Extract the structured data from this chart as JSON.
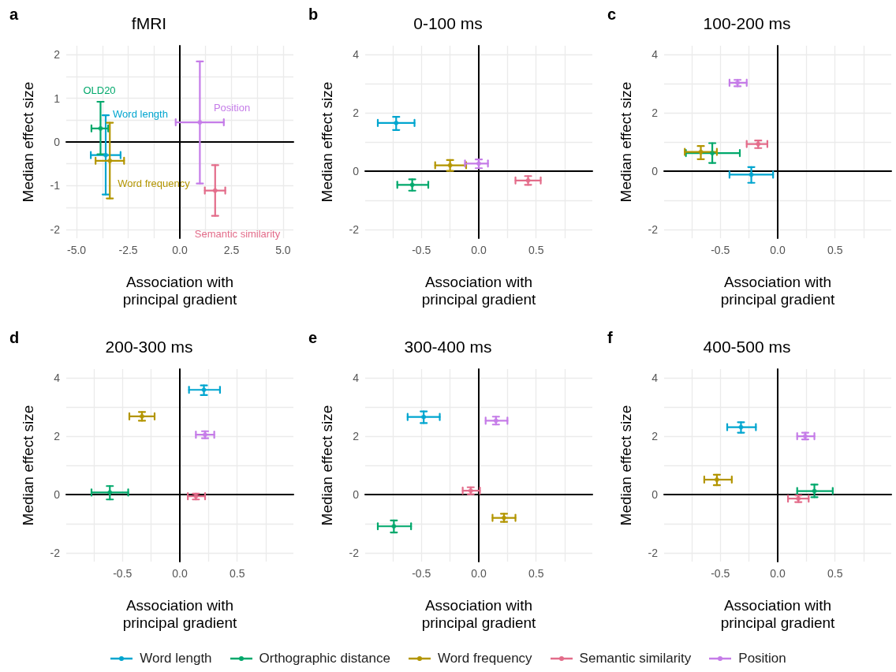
{
  "chart_data": [
    {
      "type": "scatter",
      "title": "fMRI",
      "xlabel": "Association with\nprincipal gradient",
      "ylabel": "Median effect size",
      "xlim": [
        -5.5,
        5.5
      ],
      "ylim": [
        -2.2,
        2.2
      ],
      "xticks": [
        {
          "value": -5,
          "label": "-5.0"
        },
        {
          "value": -3.75,
          "label": null
        },
        {
          "value": -2.5,
          "label": "-2.5"
        },
        {
          "value": -1.25,
          "label": null
        },
        {
          "value": 0,
          "label": "0.0"
        },
        {
          "value": 1.25,
          "label": null
        },
        {
          "value": 2.5,
          "label": "2.5"
        },
        {
          "value": 3.75,
          "label": null
        },
        {
          "value": 5,
          "label": "5.0"
        }
      ],
      "yticks": [
        -2,
        {
          "value": -1.5,
          "label": null
        },
        -1,
        {
          "value": -0.5,
          "label": null
        },
        0,
        {
          "value": 0.5,
          "label": null
        },
        1,
        {
          "value": 1.5,
          "label": null
        },
        2
      ],
      "grid": true,
      "marker": "circle",
      "annotations": [
        "a",
        "Word length",
        "OLD20",
        "Word frequency",
        "Semantic similarity",
        "Position"
      ],
      "legend": "bottom",
      "series": [
        {
          "name": "Word length",
          "color": "#00a5cf",
          "x": [
            -3.59
          ],
          "values": [
            -0.3
          ],
          "xerrors": [
            [
              -4.31,
              -2.87
            ]
          ],
          "errors": [
            [
              -1.2,
              0.61
            ]
          ]
        },
        {
          "name": "Orthographic distance",
          "color": "#00a86b",
          "x": [
            -3.84
          ],
          "values": [
            0.31
          ],
          "xerrors": [
            [
              -4.28,
              -3.47
            ]
          ],
          "errors": [
            [
              -0.28,
              0.92
            ]
          ]
        },
        {
          "name": "Word frequency",
          "color": "#b39500",
          "x": [
            -3.39
          ],
          "values": [
            -0.43
          ],
          "xerrors": [
            [
              -4.08,
              -2.7
            ]
          ],
          "errors": [
            [
              -1.29,
              0.44
            ]
          ]
        },
        {
          "name": "Semantic similarity",
          "color": "#e36c8a",
          "x": [
            1.71
          ],
          "values": [
            -1.11
          ],
          "xerrors": [
            [
              1.21,
              2.2
            ]
          ],
          "errors": [
            [
              -1.69,
              -0.53
            ]
          ]
        },
        {
          "name": "Position",
          "color": "#c57ce8",
          "x": [
            0.97
          ],
          "values": [
            0.45
          ],
          "xerrors": [
            [
              -0.2,
              2.13
            ]
          ],
          "errors": [
            [
              -0.95,
              1.84
            ]
          ]
        }
      ]
    },
    {
      "type": "scatter",
      "title": "0-100 ms",
      "xlabel": "Association with\nprincipal gradient",
      "ylabel": "Median effect size",
      "xlim": [
        -0.99,
        0.99
      ],
      "ylim": [
        -2.3,
        4.3
      ],
      "xticks": [
        {
          "value": -0.75,
          "label": null
        },
        {
          "value": -0.5,
          "label": "-0.5"
        },
        {
          "value": -0.25,
          "label": null
        },
        {
          "value": 0,
          "label": "0.0"
        },
        {
          "value": 0.25,
          "label": null
        },
        {
          "value": 0.5,
          "label": "0.5"
        },
        {
          "value": 0.75,
          "label": null
        }
      ],
      "yticks": [
        -2,
        {
          "value": -1,
          "label": null
        },
        0,
        {
          "value": 1,
          "label": null
        },
        2,
        {
          "value": 3,
          "label": null
        },
        4
      ],
      "grid": true,
      "marker": "circle",
      "annotations": [
        "b"
      ],
      "series": [
        {
          "color": "#00a5cf",
          "x": [
            -0.72
          ],
          "values": [
            1.65
          ],
          "xerrors": [
            [
              -0.88,
              -0.56
            ]
          ],
          "errors": [
            [
              1.41,
              1.86
            ]
          ]
        },
        {
          "color": "#00a86b",
          "x": [
            -0.58
          ],
          "values": [
            -0.47
          ],
          "xerrors": [
            [
              -0.71,
              -0.44
            ]
          ],
          "errors": [
            [
              -0.67,
              -0.28
            ]
          ]
        },
        {
          "color": "#b39500",
          "x": [
            -0.25
          ],
          "values": [
            0.2
          ],
          "xerrors": [
            [
              -0.38,
              -0.11
            ]
          ],
          "errors": [
            [
              0.01,
              0.38
            ]
          ]
        },
        {
          "color": "#e36c8a",
          "x": [
            0.43
          ],
          "values": [
            -0.32
          ],
          "xerrors": [
            [
              0.32,
              0.54
            ]
          ],
          "errors": [
            [
              -0.47,
              -0.17
            ]
          ]
        },
        {
          "color": "#c57ce8",
          "x": [
            0.0
          ],
          "values": [
            0.26
          ],
          "xerrors": [
            [
              -0.12,
              0.08
            ]
          ],
          "errors": [
            [
              0.1,
              0.4
            ]
          ]
        }
      ]
    },
    {
      "type": "scatter",
      "title": "100-200 ms",
      "xlabel": "Association with\nprincipal gradient",
      "ylabel": "Median effect size",
      "xlim": [
        -0.99,
        0.99
      ],
      "ylim": [
        -2.3,
        4.3
      ],
      "xticks": [
        {
          "value": -0.75,
          "label": null
        },
        {
          "value": -0.5,
          "label": "-0.5"
        },
        {
          "value": -0.25,
          "label": null
        },
        {
          "value": 0,
          "label": "0.0"
        },
        {
          "value": 0.25,
          "label": null
        },
        {
          "value": 0.5,
          "label": "0.5"
        },
        {
          "value": 0.75,
          "label": null
        }
      ],
      "yticks": [
        -2,
        {
          "value": -1,
          "label": null
        },
        0,
        {
          "value": 1,
          "label": null
        },
        2,
        {
          "value": 3,
          "label": null
        },
        4
      ],
      "grid": true,
      "marker": "circle",
      "annotations": [
        "c"
      ],
      "series": [
        {
          "color": "#00a5cf",
          "x": [
            -0.23
          ],
          "values": [
            -0.12
          ],
          "xerrors": [
            [
              -0.42,
              -0.04
            ]
          ],
          "errors": [
            [
              -0.4,
              0.14
            ]
          ]
        },
        {
          "color": "#00a86b",
          "x": [
            -0.57
          ],
          "values": [
            0.62
          ],
          "xerrors": [
            [
              -0.8,
              -0.33
            ]
          ],
          "errors": [
            [
              0.28,
              0.96
            ]
          ]
        },
        {
          "color": "#b39500",
          "x": [
            -0.67
          ],
          "values": [
            0.66
          ],
          "xerrors": [
            [
              -0.81,
              -0.53
            ]
          ],
          "errors": [
            [
              0.41,
              0.86
            ]
          ]
        },
        {
          "color": "#e36c8a",
          "x": [
            -0.17
          ],
          "values": [
            0.93
          ],
          "xerrors": [
            [
              -0.27,
              -0.09
            ]
          ],
          "errors": [
            [
              0.79,
              1.05
            ]
          ]
        },
        {
          "color": "#c57ce8",
          "x": [
            -0.35
          ],
          "values": [
            3.03
          ],
          "xerrors": [
            [
              -0.42,
              -0.27
            ]
          ],
          "errors": [
            [
              2.91,
              3.13
            ]
          ]
        }
      ]
    },
    {
      "type": "scatter",
      "title": "200-300 ms",
      "xlabel": "Association with\nprincipal gradient",
      "ylabel": "Median effect size",
      "xlim": [
        -0.99,
        0.99
      ],
      "ylim": [
        -2.3,
        4.3
      ],
      "xticks": [
        {
          "value": -0.75,
          "label": null
        },
        {
          "value": -0.5,
          "label": "-0.5"
        },
        {
          "value": -0.25,
          "label": null
        },
        {
          "value": 0,
          "label": "0.0"
        },
        {
          "value": 0.25,
          "label": null
        },
        {
          "value": 0.5,
          "label": "0.5"
        },
        {
          "value": 0.75,
          "label": null
        }
      ],
      "yticks": [
        -2,
        {
          "value": -1,
          "label": null
        },
        0,
        {
          "value": 1,
          "label": null
        },
        2,
        {
          "value": 3,
          "label": null
        },
        4
      ],
      "grid": true,
      "marker": "circle",
      "annotations": [
        "d"
      ],
      "series": [
        {
          "color": "#00a5cf",
          "x": [
            0.21
          ],
          "values": [
            3.59
          ],
          "xerrors": [
            [
              0.08,
              0.35
            ]
          ],
          "errors": [
            [
              3.41,
              3.74
            ]
          ]
        },
        {
          "color": "#00a86b",
          "x": [
            -0.61
          ],
          "values": [
            0.07
          ],
          "xerrors": [
            [
              -0.77,
              -0.45
            ]
          ],
          "errors": [
            [
              -0.17,
              0.29
            ]
          ]
        },
        {
          "color": "#b39500",
          "x": [
            -0.33
          ],
          "values": [
            2.68
          ],
          "xerrors": [
            [
              -0.44,
              -0.22
            ]
          ],
          "errors": [
            [
              2.53,
              2.83
            ]
          ]
        },
        {
          "color": "#e36c8a",
          "x": [
            0.14
          ],
          "values": [
            -0.06
          ],
          "xerrors": [
            [
              0.07,
              0.22
            ]
          ],
          "errors": [
            [
              -0.17,
              0.03
            ]
          ]
        },
        {
          "color": "#c57ce8",
          "x": [
            0.22
          ],
          "values": [
            2.05
          ],
          "xerrors": [
            [
              0.14,
              0.3
            ]
          ],
          "errors": [
            [
              1.93,
              2.17
            ]
          ]
        }
      ]
    },
    {
      "type": "scatter",
      "title": "300-400 ms",
      "xlabel": "Association with\nprincipal gradient",
      "ylabel": "Median effect size",
      "xlim": [
        -0.99,
        0.99
      ],
      "ylim": [
        -2.3,
        4.3
      ],
      "xticks": [
        {
          "value": -0.75,
          "label": null
        },
        {
          "value": -0.5,
          "label": "-0.5"
        },
        {
          "value": -0.25,
          "label": null
        },
        {
          "value": 0,
          "label": "0.0"
        },
        {
          "value": 0.25,
          "label": null
        },
        {
          "value": 0.5,
          "label": "0.5"
        },
        {
          "value": 0.75,
          "label": null
        }
      ],
      "yticks": [
        -2,
        {
          "value": -1,
          "label": null
        },
        0,
        {
          "value": 1,
          "label": null
        },
        2,
        {
          "value": 3,
          "label": null
        },
        4
      ],
      "grid": true,
      "marker": "circle",
      "annotations": [
        "e"
      ],
      "series": [
        {
          "color": "#00a5cf",
          "x": [
            -0.48
          ],
          "values": [
            2.66
          ],
          "xerrors": [
            [
              -0.62,
              -0.34
            ]
          ],
          "errors": [
            [
              2.45,
              2.85
            ]
          ]
        },
        {
          "color": "#00a86b",
          "x": [
            -0.74
          ],
          "values": [
            -1.09
          ],
          "xerrors": [
            [
              -0.88,
              -0.59
            ]
          ],
          "errors": [
            [
              -1.3,
              -0.89
            ]
          ]
        },
        {
          "color": "#b39500",
          "x": [
            0.22
          ],
          "values": [
            -0.8
          ],
          "xerrors": [
            [
              0.12,
              0.32
            ]
          ],
          "errors": [
            [
              -0.94,
              -0.66
            ]
          ]
        },
        {
          "color": "#e36c8a",
          "x": [
            -0.07
          ],
          "values": [
            0.13
          ],
          "xerrors": [
            [
              -0.14,
              0.01
            ]
          ],
          "errors": [
            [
              0.01,
              0.25
            ]
          ]
        },
        {
          "color": "#c57ce8",
          "x": [
            0.15
          ],
          "values": [
            2.53
          ],
          "xerrors": [
            [
              0.06,
              0.25
            ]
          ],
          "errors": [
            [
              2.4,
              2.67
            ]
          ]
        }
      ]
    },
    {
      "type": "scatter",
      "title": "400-500 ms",
      "xlabel": "Association with\nprincipal gradient",
      "ylabel": "Median effect size",
      "xlim": [
        -0.99,
        0.99
      ],
      "ylim": [
        -2.3,
        4.3
      ],
      "xticks": [
        {
          "value": -0.75,
          "label": null
        },
        {
          "value": -0.5,
          "label": "-0.5"
        },
        {
          "value": -0.25,
          "label": null
        },
        {
          "value": 0,
          "label": "0.0"
        },
        {
          "value": 0.25,
          "label": null
        },
        {
          "value": 0.5,
          "label": "0.5"
        },
        {
          "value": 0.75,
          "label": null
        }
      ],
      "yticks": [
        -2,
        {
          "value": -1,
          "label": null
        },
        0,
        {
          "value": 1,
          "label": null
        },
        2,
        {
          "value": 3,
          "label": null
        },
        4
      ],
      "grid": true,
      "marker": "circle",
      "annotations": [
        "f"
      ],
      "series": [
        {
          "color": "#00a5cf",
          "x": [
            -0.32
          ],
          "values": [
            2.31
          ],
          "xerrors": [
            [
              -0.44,
              -0.19
            ]
          ],
          "errors": [
            [
              2.12,
              2.48
            ]
          ]
        },
        {
          "color": "#00a86b",
          "x": [
            0.32
          ],
          "values": [
            0.12
          ],
          "xerrors": [
            [
              0.17,
              0.48
            ]
          ],
          "errors": [
            [
              -0.09,
              0.34
            ]
          ]
        },
        {
          "color": "#b39500",
          "x": [
            -0.53
          ],
          "values": [
            0.51
          ],
          "xerrors": [
            [
              -0.64,
              -0.4
            ]
          ],
          "errors": [
            [
              0.32,
              0.68
            ]
          ]
        },
        {
          "color": "#e36c8a",
          "x": [
            0.18
          ],
          "values": [
            -0.14
          ],
          "xerrors": [
            [
              0.09,
              0.27
            ]
          ],
          "errors": [
            [
              -0.26,
              -0.03
            ]
          ]
        },
        {
          "color": "#c57ce8",
          "x": [
            0.24
          ],
          "values": [
            2.0
          ],
          "xerrors": [
            [
              0.17,
              0.32
            ]
          ],
          "errors": [
            [
              1.89,
              2.12
            ]
          ]
        }
      ]
    }
  ]
}
